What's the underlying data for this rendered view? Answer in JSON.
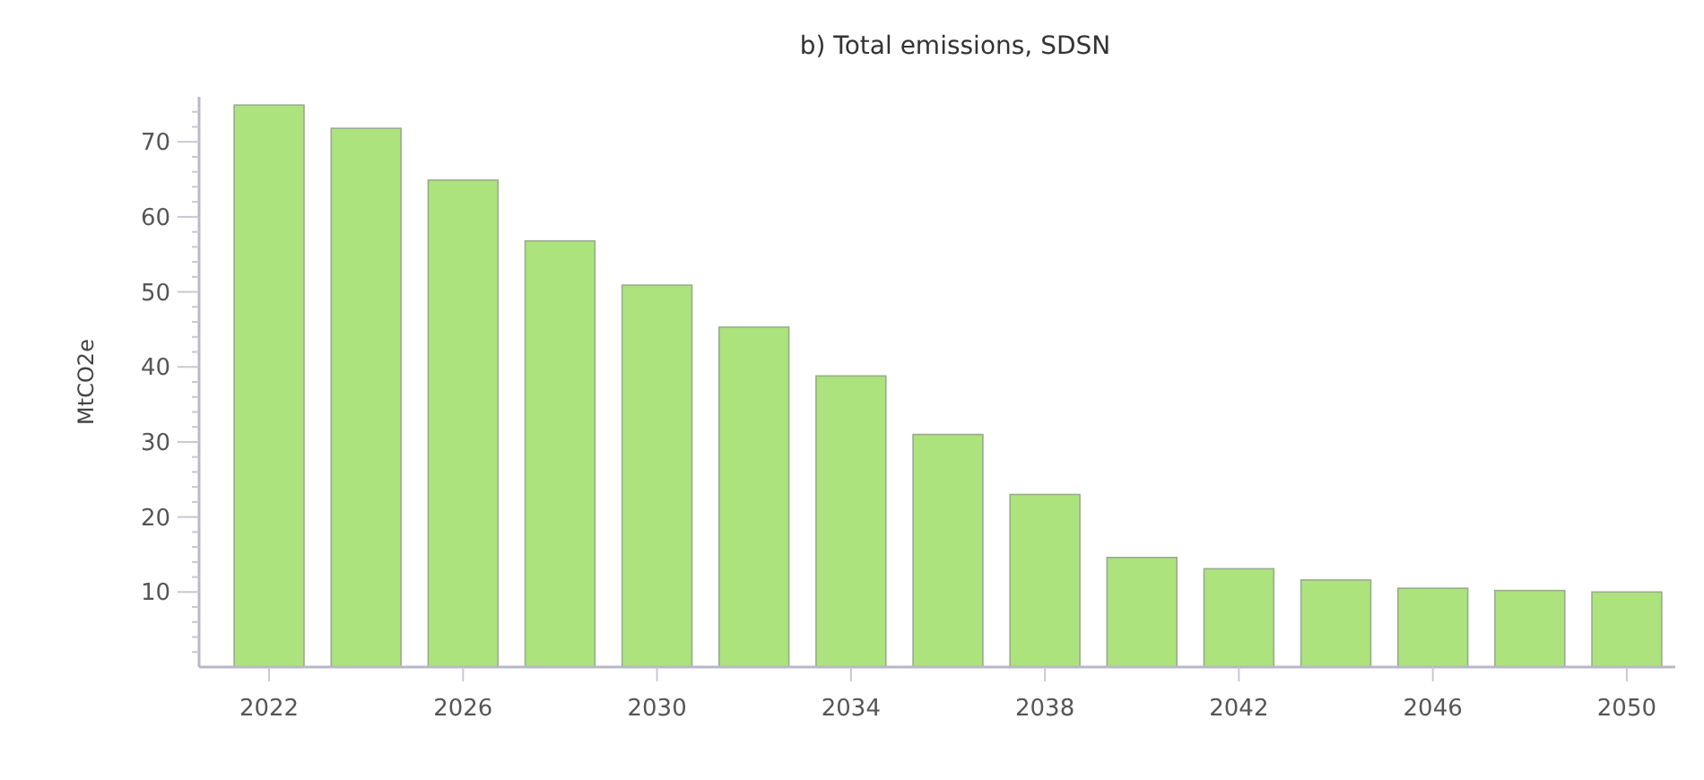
{
  "chart_data": {
    "type": "bar",
    "title": "b) Total emissions, SDSN",
    "ylabel": "MtCO2e",
    "categories": [
      "2022",
      null,
      "2026",
      null,
      "2030",
      null,
      "2034",
      null,
      "2038",
      null,
      "2042",
      null,
      "2046",
      null,
      "2050"
    ],
    "values": [
      74.9,
      71.8,
      64.9,
      56.8,
      50.9,
      45.3,
      38.8,
      31.0,
      23.0,
      14.6,
      13.1,
      11.6,
      10.5,
      10.2,
      10.0
    ],
    "color": "#ace37c",
    "ylim": [
      0,
      76
    ],
    "yticks": [
      {
        "value": 2,
        "label": null
      },
      {
        "value": 4,
        "label": null
      },
      {
        "value": 6,
        "label": null
      },
      {
        "value": 8,
        "label": null
      },
      10,
      {
        "value": 12,
        "label": null
      },
      {
        "value": 14,
        "label": null
      },
      {
        "value": 16,
        "label": null
      },
      {
        "value": 18,
        "label": null
      },
      20,
      {
        "value": 22,
        "label": null
      },
      {
        "value": 24,
        "label": null
      },
      {
        "value": 26,
        "label": null
      },
      {
        "value": 28,
        "label": null
      },
      30,
      {
        "value": 32,
        "label": null
      },
      {
        "value": 34,
        "label": null
      },
      {
        "value": 36,
        "label": null
      },
      {
        "value": 38,
        "label": null
      },
      40,
      {
        "value": 42,
        "label": null
      },
      {
        "value": 44,
        "label": null
      },
      {
        "value": 46,
        "label": null
      },
      {
        "value": 48,
        "label": null
      },
      50,
      {
        "value": 52,
        "label": null
      },
      {
        "value": 54,
        "label": null
      },
      {
        "value": 56,
        "label": null
      },
      {
        "value": 58,
        "label": null
      },
      60,
      {
        "value": 62,
        "label": null
      },
      {
        "value": 64,
        "label": null
      },
      {
        "value": 66,
        "label": null
      },
      {
        "value": 68,
        "label": null
      },
      70,
      {
        "value": 72,
        "label": null
      },
      {
        "value": 74,
        "label": null
      }
    ],
    "grid": false
  }
}
